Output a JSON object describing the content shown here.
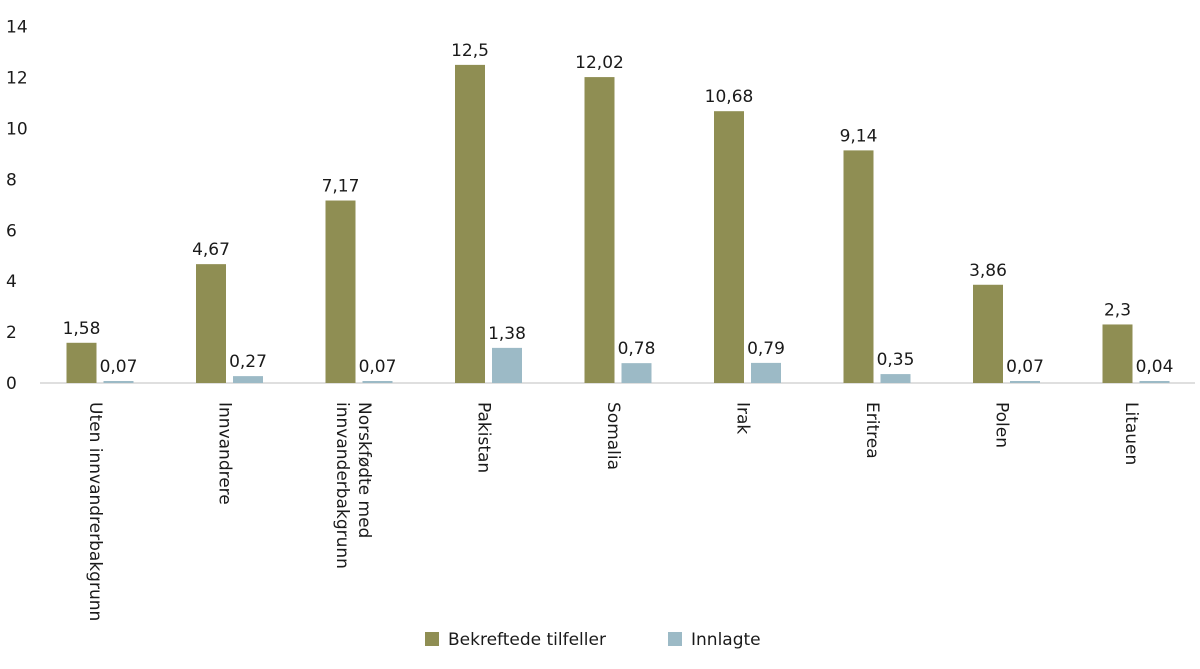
{
  "chart_data": {
    "type": "bar",
    "categories": [
      [
        "Uten innvandrerbakgrunn"
      ],
      [
        "Innvandrere"
      ],
      [
        "Norskfødte med",
        "innvanderbakgrunn"
      ],
      [
        "Pakistan"
      ],
      [
        "Somalia"
      ],
      [
        "Irak"
      ],
      [
        "Eritrea"
      ],
      [
        "Polen"
      ],
      [
        "Litauen"
      ]
    ],
    "series": [
      {
        "name": "Bekreftede tilfeller",
        "color": "#8f8e53",
        "values": [
          1.58,
          4.67,
          7.17,
          12.5,
          12.02,
          10.68,
          9.14,
          3.86,
          2.3
        ],
        "labels": [
          "1,58",
          "4,67",
          "7,17",
          "12,5",
          "12,02",
          "10,68",
          "9,14",
          "3,86",
          "2,3"
        ]
      },
      {
        "name": "Innlagte",
        "color": "#9cbac6",
        "values": [
          0.07,
          0.27,
          0.07,
          1.38,
          0.78,
          0.79,
          0.35,
          0.07,
          0.04
        ],
        "labels": [
          "0,07",
          "0,27",
          "0,07",
          "1,38",
          "0,78",
          "0,79",
          "0,35",
          "0,07",
          "0,04"
        ]
      }
    ],
    "yticks": [
      "0",
      "2",
      "4",
      "6",
      "8",
      "10",
      "12",
      "14"
    ],
    "ylim": [
      0,
      14
    ],
    "grid": false,
    "legend": "bottom"
  }
}
